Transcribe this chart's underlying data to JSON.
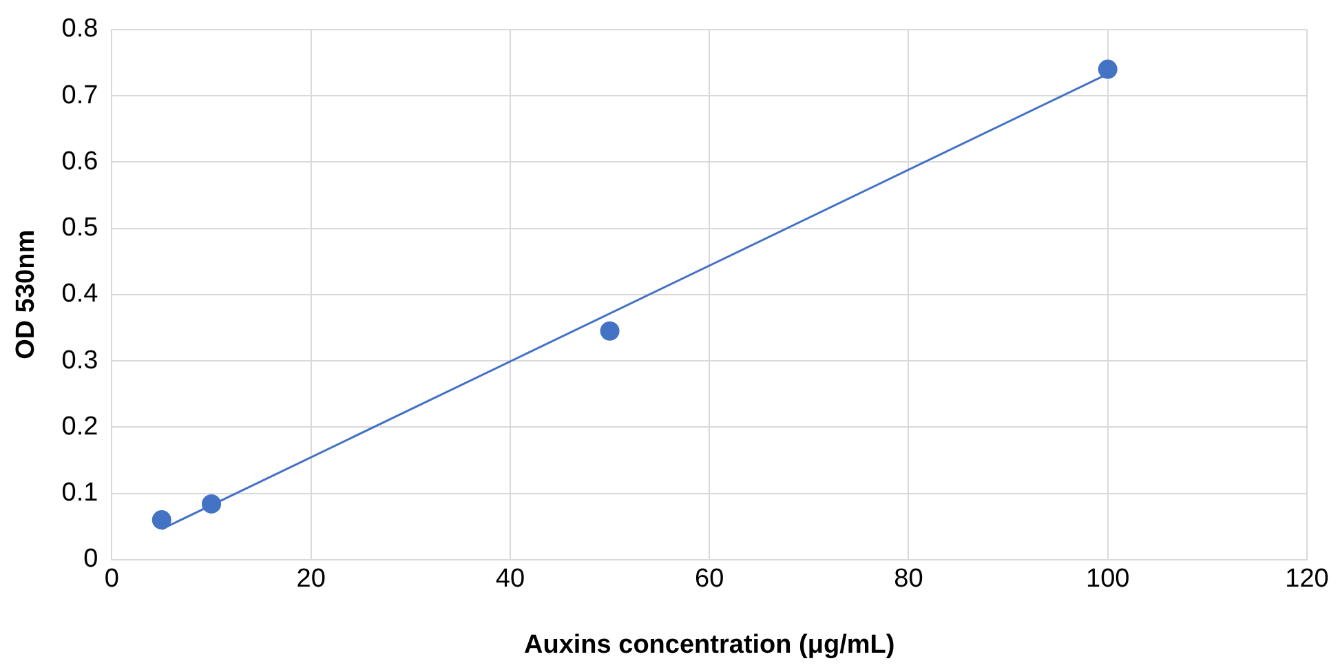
{
  "chart_data": {
    "type": "scatter",
    "xlabel": "Auxins concentration (μg/mL)",
    "ylabel": "OD 530nm",
    "series": [
      {
        "type": "scatter",
        "color": "#4472c4",
        "x": [
          5,
          10,
          50,
          100
        ],
        "values": [
          0.06,
          0.084,
          0.345,
          0.74
        ],
        "marker": "circle"
      },
      {
        "type": "line",
        "color": "#4472c4",
        "x": [
          5,
          100
        ],
        "values": [
          0.046,
          0.733
        ],
        "marker": "none"
      }
    ],
    "xlim": [
      0,
      120
    ],
    "xticks": [
      0,
      20,
      40,
      60,
      80,
      100,
      120
    ],
    "ylim": [
      0,
      0.8
    ],
    "yticks": [
      0,
      0.1,
      0.2,
      0.3,
      0.4,
      0.5,
      0.6,
      0.7,
      0.8
    ],
    "grid": true,
    "legend": false
  }
}
